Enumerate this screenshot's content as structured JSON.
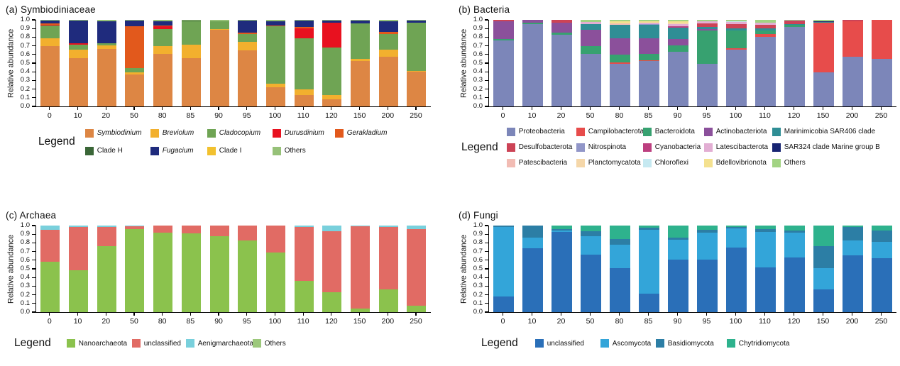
{
  "chart_data": [
    {
      "panel": "a",
      "type": "bar",
      "stacked": true,
      "title": "(a) Symbiodiniaceae",
      "ylabel": "Relative abundance",
      "legend_label": "Legend",
      "legend_position": "bottom",
      "grid": false,
      "ylim": [
        0,
        1
      ],
      "yticks": [
        "0.0",
        "0.1",
        "0.2",
        "0.3",
        "0.4",
        "0.5",
        "0.6",
        "0.7",
        "0.8",
        "0.9",
        "1.0"
      ],
      "categories": [
        "0",
        "10",
        "20",
        "50",
        "80",
        "85",
        "90",
        "95",
        "100",
        "110",
        "120",
        "150",
        "200",
        "250"
      ],
      "series": [
        {
          "name": "Symbiodinium",
          "italic": true,
          "color": "#DD8644",
          "values": [
            0.7,
            0.56,
            0.66,
            0.365,
            0.61,
            0.56,
            0.885,
            0.65,
            0.22,
            0.135,
            0.085,
            0.525,
            0.575,
            0.4
          ]
        },
        {
          "name": "Breviolum",
          "italic": true,
          "color": "#F2B02E",
          "values": [
            0.085,
            0.1,
            0.045,
            0.03,
            0.085,
            0.15,
            0.005,
            0.095,
            0.04,
            0.065,
            0.045,
            0.025,
            0.085,
            0.01
          ]
        },
        {
          "name": "Cladocopium",
          "italic": true,
          "color": "#6FA454",
          "values": [
            0.15,
            0.055,
            0.025,
            0.045,
            0.2,
            0.27,
            0.095,
            0.095,
            0.665,
            0.59,
            0.55,
            0.41,
            0.18,
            0.555
          ]
        },
        {
          "name": "Durusdinium",
          "italic": true,
          "color": "#E8111F",
          "values": [
            0.005,
            0.015,
            0,
            0,
            0.03,
            0,
            0,
            0,
            0,
            0.11,
            0.285,
            0,
            0,
            0
          ]
        },
        {
          "name": "Gerakladium",
          "italic": true,
          "color": "#E2591C",
          "values": [
            0.02,
            0,
            0,
            0.485,
            0.01,
            0,
            0,
            0.015,
            0.01,
            0.02,
            0,
            0,
            0.02,
            0
          ]
        },
        {
          "name": "Clade H",
          "italic": false,
          "color": "#3A6637",
          "values": [
            0,
            0,
            0,
            0,
            0,
            0.01,
            0,
            0,
            0,
            0,
            0,
            0,
            0,
            0.005
          ]
        },
        {
          "name": "Fugacium",
          "italic": true,
          "color": "#1F2B7D",
          "values": [
            0.03,
            0.26,
            0.255,
            0.065,
            0.05,
            0,
            0,
            0.135,
            0.05,
            0.07,
            0.025,
            0.03,
            0.12,
            0.02
          ]
        },
        {
          "name": "Clade I",
          "italic": false,
          "color": "#F2C12F",
          "values": [
            0,
            0,
            0,
            0,
            0,
            0,
            0,
            0,
            0,
            0,
            0,
            0,
            0,
            0
          ]
        },
        {
          "name": "Others",
          "italic": false,
          "color": "#96C178",
          "values": [
            0.01,
            0.01,
            0.015,
            0.01,
            0.015,
            0.01,
            0.015,
            0.01,
            0.015,
            0.01,
            0.01,
            0.01,
            0.02,
            0.01
          ]
        }
      ]
    },
    {
      "panel": "b",
      "type": "bar",
      "stacked": true,
      "title": "(b) Bacteria",
      "ylabel": "Relative abundance",
      "legend_label": "Legend",
      "legend_position": "bottom",
      "grid": false,
      "ylim": [
        0,
        1
      ],
      "yticks": [
        "0.0",
        "0.1",
        "0.2",
        "0.3",
        "0.4",
        "0.5",
        "0.6",
        "0.7",
        "0.8",
        "0.9",
        "1.0"
      ],
      "categories": [
        "0",
        "10",
        "20",
        "50",
        "80",
        "85",
        "90",
        "95",
        "100",
        "110",
        "120",
        "150",
        "200",
        "250"
      ],
      "series": [
        {
          "name": "Proteobacteria",
          "italic": false,
          "color": "#7C86B9",
          "values": [
            0.765,
            0.955,
            0.825,
            0.61,
            0.495,
            0.525,
            0.635,
            0.49,
            0.655,
            0.8,
            0.92,
            0.39,
            0.575,
            0.55
          ]
        },
        {
          "name": "Campilobacterota",
          "italic": false,
          "color": "#E74C4B",
          "values": [
            0,
            0,
            0,
            0,
            0.01,
            0.01,
            0,
            0.005,
            0.015,
            0.04,
            0,
            0.575,
            0.41,
            0.45
          ]
        },
        {
          "name": "Bacteroidota",
          "italic": false,
          "color": "#37A170",
          "values": [
            0.015,
            0.015,
            0.025,
            0.09,
            0.095,
            0.075,
            0.07,
            0.38,
            0.205,
            0.035,
            0.02,
            0,
            0,
            0
          ]
        },
        {
          "name": "Actinobacteriota",
          "italic": false,
          "color": "#8B509B",
          "values": [
            0.205,
            0.03,
            0.115,
            0.185,
            0.19,
            0.18,
            0.075,
            0.02,
            0,
            0,
            0,
            0,
            0,
            0
          ]
        },
        {
          "name": "Marinimicobia SAR406 clade",
          "italic": false,
          "color": "#2F8E95",
          "values": [
            0,
            0,
            0,
            0.07,
            0.155,
            0.15,
            0.13,
            0.025,
            0.03,
            0.025,
            0.015,
            0.01,
            0,
            0
          ]
        },
        {
          "name": "Desulfobacterota",
          "italic": false,
          "color": "#CC4356",
          "values": [
            0.015,
            0,
            0.035,
            0,
            0,
            0,
            0,
            0.04,
            0.05,
            0.045,
            0.025,
            0,
            0.015,
            0
          ]
        },
        {
          "name": "Nitrospinota",
          "italic": false,
          "color": "#9196C8",
          "values": [
            0,
            0,
            0,
            0,
            0,
            0.01,
            0,
            0,
            0,
            0,
            0,
            0,
            0,
            0
          ]
        },
        {
          "name": "Cyanobacteria",
          "italic": false,
          "color": "#BC3F7F",
          "values": [
            0,
            0,
            0,
            0,
            0,
            0,
            0.02,
            0,
            0,
            0,
            0.01,
            0,
            0,
            0
          ]
        },
        {
          "name": "Latescibacterota",
          "italic": false,
          "color": "#E2AED3",
          "values": [
            0,
            0,
            0,
            0.02,
            0,
            0.015,
            0.02,
            0.02,
            0.02,
            0.025,
            0,
            0,
            0,
            0
          ]
        },
        {
          "name": "SAR324 clade Marine group B",
          "italic": false,
          "color": "#172472",
          "values": [
            0,
            0,
            0,
            0,
            0,
            0,
            0,
            0,
            0,
            0,
            0,
            0.01,
            0,
            0
          ]
        },
        {
          "name": "Patescibacteria",
          "italic": false,
          "color": "#F2BCB4",
          "values": [
            0,
            0,
            0,
            0,
            0.015,
            0,
            0,
            0,
            0,
            0,
            0,
            0,
            0,
            0
          ]
        },
        {
          "name": "Planctomycatota",
          "italic": false,
          "color": "#F5D7A9",
          "values": [
            0,
            0,
            0,
            0,
            0,
            0,
            0.015,
            0,
            0,
            0,
            0,
            0,
            0,
            0
          ]
        },
        {
          "name": "Chloroflexi",
          "italic": false,
          "color": "#C6E9F1",
          "values": [
            0,
            0,
            0,
            0,
            0,
            0,
            0,
            0,
            0.005,
            0,
            0,
            0,
            0,
            0
          ]
        },
        {
          "name": "Bdellovibrionota",
          "italic": false,
          "color": "#F4E18F",
          "values": [
            0,
            0,
            0,
            0,
            0.02,
            0.02,
            0.015,
            0,
            0,
            0,
            0,
            0,
            0,
            0
          ]
        },
        {
          "name": "Others",
          "italic": false,
          "color": "#A2D383",
          "values": [
            0,
            0,
            0,
            0.025,
            0.02,
            0.015,
            0.02,
            0.02,
            0.02,
            0.03,
            0.01,
            0.015,
            0,
            0
          ]
        }
      ]
    },
    {
      "panel": "c",
      "type": "bar",
      "stacked": true,
      "title": "(c) Archaea",
      "ylabel": "Relative abundance",
      "legend_label": "Legend",
      "legend_position": "bottom",
      "grid": false,
      "ylim": [
        0,
        1
      ],
      "yticks": [
        "0.0",
        "0.1",
        "0.2",
        "0.3",
        "0.4",
        "0.5",
        "0.6",
        "0.7",
        "0.8",
        "0.9",
        "1.0"
      ],
      "categories": [
        "0",
        "10",
        "20",
        "50",
        "80",
        "85",
        "90",
        "95",
        "100",
        "110",
        "120",
        "150",
        "200",
        "250"
      ],
      "series": [
        {
          "name": "Nanoarchaeota",
          "italic": false,
          "color": "#8BC24D",
          "values": [
            0.585,
            0.48,
            0.765,
            0.96,
            0.92,
            0.91,
            0.88,
            0.83,
            0.69,
            0.36,
            0.23,
            0.04,
            0.26,
            0.07
          ]
        },
        {
          "name": "unclassified",
          "italic": false,
          "color": "#E16B64",
          "values": [
            0.37,
            0.5,
            0.215,
            0.035,
            0.08,
            0.09,
            0.12,
            0.17,
            0.31,
            0.62,
            0.705,
            0.95,
            0.725,
            0.89
          ]
        },
        {
          "name": "Aenigmarchaeota",
          "italic": false,
          "color": "#79D0DC",
          "values": [
            0.045,
            0.02,
            0.02,
            0.005,
            0,
            0,
            0,
            0,
            0,
            0.02,
            0.065,
            0.01,
            0.015,
            0.04
          ]
        },
        {
          "name": "Others",
          "italic": false,
          "color": "#9CC87B",
          "values": [
            0,
            0,
            0,
            0,
            0,
            0,
            0,
            0,
            0,
            0,
            0,
            0,
            0,
            0
          ]
        }
      ]
    },
    {
      "panel": "d",
      "type": "bar",
      "stacked": true,
      "title": "(d) Fungi",
      "ylabel": "Relative abundance",
      "legend_label": "Legend",
      "legend_position": "bottom",
      "grid": false,
      "ylim": [
        0,
        1
      ],
      "yticks": [
        "0.0",
        "0.1",
        "0.2",
        "0.3",
        "0.4",
        "0.5",
        "0.6",
        "0.7",
        "0.8",
        "0.9",
        "1.0"
      ],
      "categories": [
        "0",
        "10",
        "20",
        "50",
        "80",
        "85",
        "90",
        "95",
        "100",
        "110",
        "120",
        "150",
        "200",
        "250"
      ],
      "series": [
        {
          "name": "unclassified",
          "italic": false,
          "color": "#2A6FB8",
          "values": [
            0.18,
            0.74,
            0.93,
            0.66,
            0.505,
            0.215,
            0.61,
            0.61,
            0.745,
            0.52,
            0.635,
            0.26,
            0.655,
            0.62
          ]
        },
        {
          "name": "Ascomycota",
          "italic": false,
          "color": "#33A5D9",
          "values": [
            0.8,
            0.12,
            0.015,
            0.215,
            0.27,
            0.735,
            0.225,
            0.31,
            0.22,
            0.41,
            0.28,
            0.25,
            0.17,
            0.195
          ]
        },
        {
          "name": "Basidiomycota",
          "italic": false,
          "color": "#2C7EA5",
          "values": [
            0.02,
            0.14,
            0.015,
            0.06,
            0.07,
            0.025,
            0.03,
            0.03,
            0.015,
            0.03,
            0.025,
            0.255,
            0.16,
            0.13
          ]
        },
        {
          "name": "Chytridiomycota",
          "italic": false,
          "color": "#2EB28D",
          "values": [
            0,
            0,
            0.04,
            0.065,
            0.155,
            0.025,
            0.135,
            0.05,
            0.02,
            0.04,
            0.06,
            0.235,
            0.015,
            0.055
          ]
        }
      ]
    }
  ]
}
